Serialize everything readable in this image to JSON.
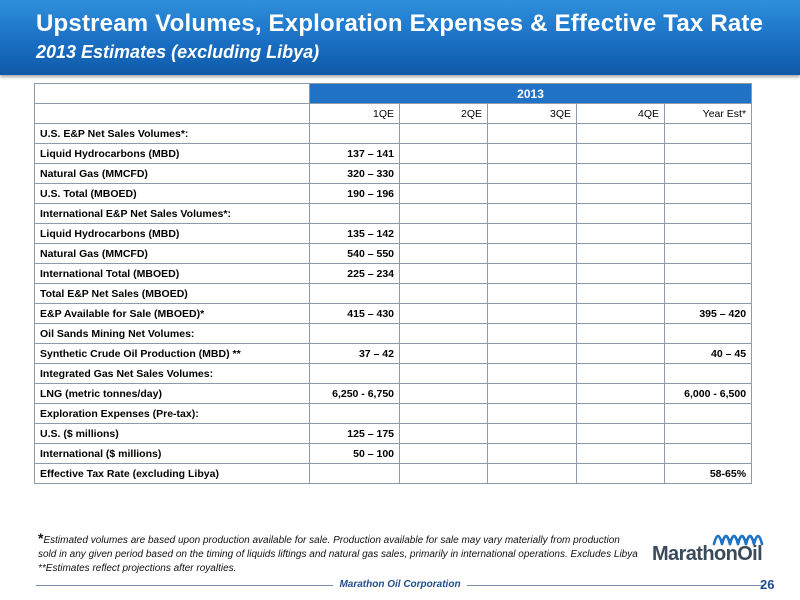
{
  "header": {
    "title": "Upstream Volumes, Exploration Expenses & Effective Tax Rate",
    "subtitle": "2013 Estimates (excluding Libya)"
  },
  "table": {
    "year": "2013",
    "columns": [
      "1QE",
      "2QE",
      "3QE",
      "4QE",
      "Year Est*"
    ],
    "rows": [
      {
        "label": "U.S. E&P Net Sales Volumes*:",
        "values": [
          "",
          "",
          "",
          "",
          ""
        ]
      },
      {
        "label": "Liquid Hydrocarbons (MBD)",
        "values": [
          "137 – 141",
          "",
          "",
          "",
          ""
        ]
      },
      {
        "label": "Natural Gas (MMCFD)",
        "values": [
          "320 – 330",
          "",
          "",
          "",
          ""
        ]
      },
      {
        "label": "U.S. Total (MBOED)",
        "values": [
          "190 – 196",
          "",
          "",
          "",
          ""
        ]
      },
      {
        "label": "International E&P Net Sales Volumes*:",
        "values": [
          "",
          "",
          "",
          "",
          ""
        ]
      },
      {
        "label": "Liquid Hydrocarbons (MBD)",
        "values": [
          "135 – 142",
          "",
          "",
          "",
          ""
        ]
      },
      {
        "label": "Natural Gas (MMCFD)",
        "values": [
          "540 – 550",
          "",
          "",
          "",
          ""
        ]
      },
      {
        "label": "International Total (MBOED)",
        "values": [
          "225 – 234",
          "",
          "",
          "",
          ""
        ]
      },
      {
        "label": "Total E&P Net Sales (MBOED)",
        "values": [
          "",
          "",
          "",
          "",
          ""
        ]
      },
      {
        "label": "E&P Available for Sale (MBOED)*",
        "values": [
          "415 – 430",
          "",
          "",
          "",
          "395 – 420"
        ]
      },
      {
        "label": "Oil Sands Mining Net Volumes:",
        "values": [
          "",
          "",
          "",
          "",
          ""
        ]
      },
      {
        "label": "Synthetic Crude Oil Production (MBD) **",
        "values": [
          "37 – 42",
          "",
          "",
          "",
          "40 – 45"
        ]
      },
      {
        "label": "Integrated Gas Net Sales Volumes:",
        "values": [
          "",
          "",
          "",
          "",
          ""
        ]
      },
      {
        "label": "LNG (metric tonnes/day)",
        "values": [
          "6,250 - 6,750",
          "",
          "",
          "",
          "6,000 - 6,500"
        ]
      },
      {
        "label": "Exploration Expenses (Pre-tax):",
        "values": [
          "",
          "",
          "",
          "",
          ""
        ]
      },
      {
        "label": "U.S. ($ millions)",
        "values": [
          "125 – 175",
          "",
          "",
          "",
          ""
        ]
      },
      {
        "label": "International ($ millions)",
        "values": [
          "50 – 100",
          "",
          "",
          "",
          ""
        ]
      },
      {
        "label": "Effective Tax Rate (excluding Libya)",
        "values": [
          "",
          "",
          "",
          "",
          "58-65%"
        ]
      }
    ]
  },
  "footnotes": {
    "note1_star": "*",
    "note1_line1": "Estimated volumes are based upon production available for sale. Production available for sale may vary materially from production",
    "note1_line2": "sold in any given period based on the timing of liquids liftings and natural gas sales, primarily in international operations. Excludes Libya",
    "note2": "**Estimates reflect projections after royalties."
  },
  "logo": {
    "text": "MarathonOil",
    "color": "#3b4a5a",
    "wave_color": "#1f72c6"
  },
  "footer": {
    "company": "Marathon Oil Corporation",
    "page": "26"
  },
  "colors": {
    "header_blue": "#1a6fc4",
    "year_cell_blue": "#1f72c6"
  }
}
